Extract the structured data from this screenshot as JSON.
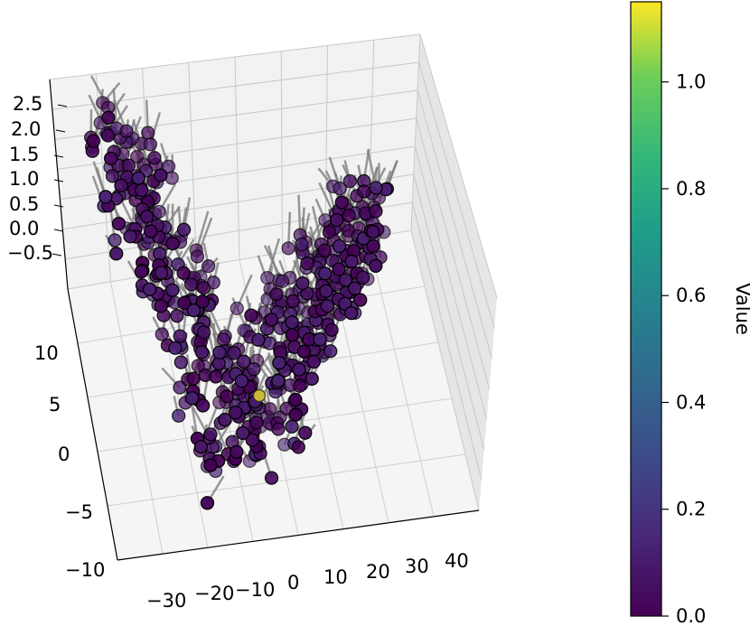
{
  "chart_data": {
    "type": "scatter",
    "projection": "3d",
    "title": "",
    "xlabel": "",
    "ylabel": "",
    "zlabel": "",
    "x_ticks": [
      "−30",
      "−20",
      "−10",
      "0",
      "10",
      "20",
      "30",
      "40"
    ],
    "y_ticks": [
      "−10",
      "−5",
      "0",
      "5",
      "10"
    ],
    "z_ticks": [
      "−0.5",
      "0.0",
      "0.5",
      "1.0",
      "1.5",
      "2.0",
      "2.5"
    ],
    "xlim": [
      -35,
      45
    ],
    "ylim": [
      -10,
      13
    ],
    "zlim": [
      -0.5,
      2.6
    ],
    "grid": true,
    "colormap": "viridis",
    "colorbar": {
      "label": "Value",
      "ticks": [
        "0.0",
        "0.2",
        "0.4",
        "0.6",
        "0.8",
        "1.0"
      ],
      "range": [
        0.0,
        1.15
      ]
    },
    "marker_edge_color": "#000000",
    "stem_color": "#808080",
    "point_count": 500,
    "description_of_shape": "V-shaped (parabolic) surface z ≈ (x/20)^2 sampled on grid; near-zero values except one highlighted point",
    "highlight_point": {
      "x": 0,
      "y": 0,
      "z": 0,
      "value": 1.15,
      "color": "#cbb83c"
    }
  }
}
